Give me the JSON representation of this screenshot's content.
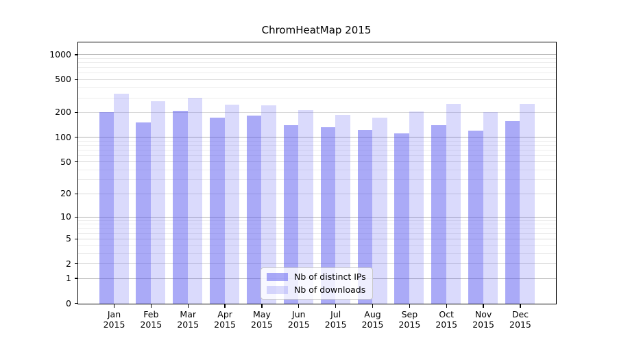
{
  "chart_data": {
    "type": "bar",
    "title": "ChromHeatMap 2015",
    "categories": [
      "Jan",
      "Feb",
      "Mar",
      "Apr",
      "May",
      "Jun",
      "Jul",
      "Aug",
      "Sep",
      "Oct",
      "Nov",
      "Dec"
    ],
    "x_tick_second_line": "2015",
    "series": [
      {
        "name": "Nb of distinct IPs",
        "color": "rgba(85,85,240,0.5)",
        "values": [
          199,
          150,
          207,
          172,
          182,
          139,
          131,
          121,
          110,
          140,
          119,
          156
        ]
      },
      {
        "name": "Nb of downloads",
        "color": "rgba(85,85,240,0.22)",
        "values": [
          335,
          270,
          298,
          246,
          242,
          211,
          185,
          172,
          203,
          251,
          199,
          251
        ]
      }
    ],
    "y_axis": {
      "scale": "log-like (position ~ log10(1+value))",
      "major_ticks": [
        0,
        1,
        2,
        5,
        10,
        20,
        50,
        100,
        200,
        500,
        1000
      ],
      "minor_gridlines": [
        3,
        4,
        6,
        7,
        8,
        9,
        30,
        40,
        60,
        70,
        80,
        90,
        300,
        400,
        600,
        700,
        800,
        900
      ],
      "ylim": [
        0,
        1400
      ]
    },
    "xlabel": "",
    "ylabel": "",
    "grid": "on (horizontal major + minor)",
    "legend_position": "lower center"
  },
  "colors": {
    "background": "#ffffff",
    "axis": "#000000",
    "text": "#000000",
    "grid_decade": "#b0b0b0",
    "grid_major": "#d9d9d9",
    "grid_minor": "#ececec",
    "legend_border": "#c8c8c8",
    "bar_distinct_ips": "rgba(85,85,240,0.5)",
    "bar_downloads": "rgba(85,85,240,0.22)"
  }
}
